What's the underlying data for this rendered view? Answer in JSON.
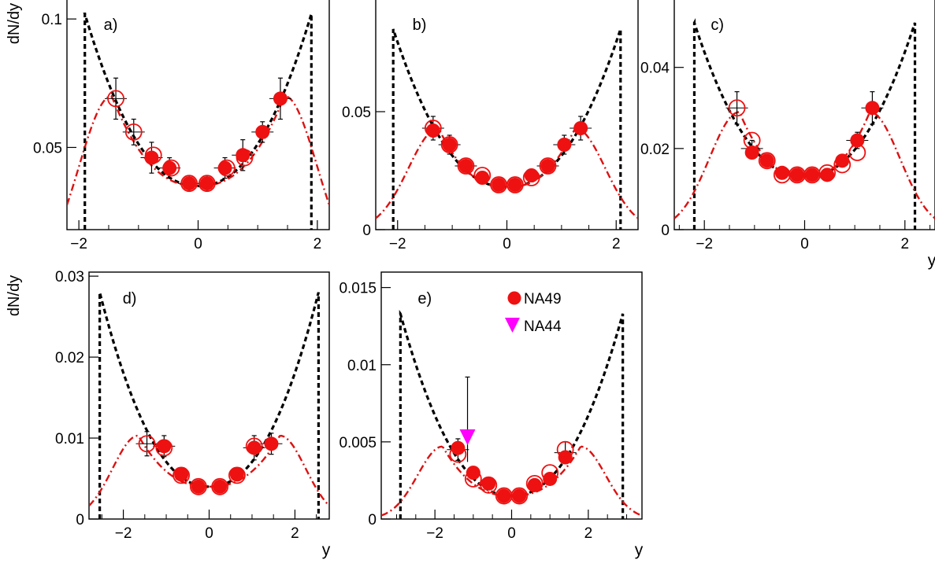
{
  "figure": {
    "ylabel": "dN/dy",
    "xlabel": "y",
    "legend": {
      "entries": [
        {
          "label": "NA49",
          "marker": "filled-circle",
          "color": "#ee1111"
        },
        {
          "label": "NA44",
          "marker": "filled-triangle-down",
          "color": "#ff00ff"
        }
      ]
    },
    "colors": {
      "data": "#ee1111",
      "black_curve": "#000000",
      "red_curve": "#dd1111",
      "na44": "#ff00ff"
    }
  },
  "chart_data": [
    {
      "id": "a",
      "panel_label": "a)",
      "type": "scatter",
      "xlim": [
        -2.2,
        2.2
      ],
      "ylim": [
        0.018,
        0.108
      ],
      "xticks": [
        -2,
        0,
        2
      ],
      "xtick_labels": [
        "−2",
        "0",
        "2"
      ],
      "yticks": [
        0.05,
        0.1
      ],
      "ytick_labels": [
        "0.05",
        "0.1"
      ],
      "ylabel": "dN/dy",
      "xlabel": "",
      "filled": [
        [
          -0.78,
          0.046
        ],
        [
          -0.48,
          0.042
        ],
        [
          -0.15,
          0.036
        ],
        [
          0.15,
          0.036
        ],
        [
          0.45,
          0.042
        ],
        [
          0.75,
          0.047
        ],
        [
          1.08,
          0.056
        ],
        [
          1.38,
          0.069
        ]
      ],
      "open": [
        [
          -1.38,
          0.069
        ],
        [
          -1.08,
          0.056
        ],
        [
          -0.75,
          0.047
        ],
        [
          -0.45,
          0.042
        ],
        [
          -0.15,
          0.036
        ],
        [
          0.15,
          0.036
        ],
        [
          0.48,
          0.042
        ],
        [
          0.78,
          0.046
        ]
      ],
      "errors": [
        [
          -1.38,
          0.069,
          0.008
        ],
        [
          -1.08,
          0.056,
          0.005
        ],
        [
          -0.78,
          0.046,
          0.006
        ],
        [
          -0.48,
          0.042,
          0.004
        ],
        [
          -0.15,
          0.036,
          0.003
        ],
        [
          0.15,
          0.036,
          0.003
        ],
        [
          0.45,
          0.042,
          0.004
        ],
        [
          0.75,
          0.047,
          0.006
        ],
        [
          1.08,
          0.056,
          0.004
        ],
        [
          1.38,
          0.069,
          0.008
        ]
      ],
      "black_curve": {
        "edge_x": 1.9,
        "peak": 0.102,
        "center": 0.035
      },
      "red_curve": {
        "peak_x": 1.45,
        "peak": 0.07,
        "center": 0.035,
        "width": 0.55
      }
    },
    {
      "id": "b",
      "panel_label": "b)",
      "type": "scatter",
      "xlim": [
        -2.4,
        2.4
      ],
      "ylim": [
        0,
        0.098
      ],
      "xticks": [
        -2,
        0,
        2
      ],
      "xtick_labels": [
        "−2",
        "0",
        "2"
      ],
      "yticks": [
        0,
        0.05
      ],
      "ytick_labels": [
        "0",
        "0.05"
      ],
      "ylabel": "",
      "xlabel": "",
      "filled": [
        [
          -1.35,
          0.042
        ],
        [
          -1.05,
          0.036
        ],
        [
          -0.75,
          0.027
        ],
        [
          -0.45,
          0.022
        ],
        [
          -0.15,
          0.019
        ],
        [
          0.15,
          0.019
        ],
        [
          0.45,
          0.023
        ],
        [
          0.75,
          0.027
        ],
        [
          1.05,
          0.036
        ],
        [
          1.35,
          0.043
        ]
      ],
      "open": [
        [
          -1.35,
          0.043
        ],
        [
          -1.05,
          0.036
        ],
        [
          -0.75,
          0.027
        ],
        [
          -0.45,
          0.023
        ],
        [
          -0.15,
          0.019
        ],
        [
          0.15,
          0.019
        ],
        [
          0.45,
          0.022
        ],
        [
          0.75,
          0.027
        ]
      ],
      "errors": [
        [
          -1.35,
          0.043,
          0.005
        ],
        [
          -1.05,
          0.036,
          0.004
        ],
        [
          -0.75,
          0.027,
          0.002
        ],
        [
          0.75,
          0.027,
          0.002
        ],
        [
          1.05,
          0.036,
          0.004
        ],
        [
          1.35,
          0.043,
          0.005
        ]
      ],
      "black_curve": {
        "edge_x": 2.08,
        "peak": 0.085,
        "center": 0.018
      },
      "red_curve": {
        "peak_x": 1.25,
        "peak": 0.043,
        "center": 0.018,
        "width": 0.55
      }
    },
    {
      "id": "c",
      "panel_label": "c)",
      "type": "scatter",
      "xlim": [
        -2.6,
        2.6
      ],
      "ylim": [
        0,
        0.057
      ],
      "xticks": [
        -2,
        0,
        2
      ],
      "xtick_labels": [
        "−2",
        "0",
        "2"
      ],
      "yticks": [
        0,
        0.02,
        0.04
      ],
      "ytick_labels": [
        "0",
        "0.02",
        "0.04"
      ],
      "ylabel": "",
      "xlabel": "y",
      "filled": [
        [
          -1.05,
          0.019
        ],
        [
          -0.75,
          0.017
        ],
        [
          -0.45,
          0.014
        ],
        [
          -0.15,
          0.0135
        ],
        [
          0.15,
          0.0135
        ],
        [
          0.45,
          0.0135
        ],
        [
          0.75,
          0.017
        ],
        [
          1.05,
          0.022
        ],
        [
          1.35,
          0.03
        ]
      ],
      "open": [
        [
          -1.35,
          0.03
        ],
        [
          -1.05,
          0.022
        ],
        [
          -0.75,
          0.017
        ],
        [
          -0.45,
          0.0135
        ],
        [
          -0.15,
          0.0135
        ],
        [
          0.15,
          0.0135
        ],
        [
          0.45,
          0.014
        ],
        [
          0.75,
          0.016
        ],
        [
          1.05,
          0.019
        ]
      ],
      "errors": [
        [
          -1.35,
          0.03,
          0.004
        ],
        [
          -1.05,
          0.02,
          0.002
        ],
        [
          1.05,
          0.022,
          0.002
        ],
        [
          1.35,
          0.03,
          0.004
        ]
      ],
      "black_curve": {
        "edge_x": 2.2,
        "peak": 0.051,
        "center": 0.013
      },
      "red_curve": {
        "peak_x": 1.3,
        "peak": 0.029,
        "center": 0.013,
        "width": 0.6
      }
    },
    {
      "id": "d",
      "panel_label": "d)",
      "type": "scatter",
      "xlim": [
        -2.8,
        2.8
      ],
      "ylim": [
        0,
        0.0305
      ],
      "xticks": [
        -2,
        0,
        2
      ],
      "xtick_labels": [
        "−2",
        "0",
        "2"
      ],
      "yticks": [
        0,
        0.01,
        0.02,
        0.03
      ],
      "ytick_labels": [
        "0",
        "0.01",
        "0.02",
        "0.03"
      ],
      "ylabel": "dN/dy",
      "xlabel": "y",
      "filled": [
        [
          -1.05,
          0.009
        ],
        [
          -0.65,
          0.0055
        ],
        [
          -0.25,
          0.004
        ],
        [
          0.25,
          0.004
        ],
        [
          0.65,
          0.0055
        ],
        [
          1.05,
          0.0088
        ],
        [
          1.45,
          0.0093
        ]
      ],
      "open": [
        [
          -1.45,
          0.0093
        ],
        [
          -1.05,
          0.0088
        ],
        [
          -0.65,
          0.0054
        ],
        [
          -0.25,
          0.004
        ],
        [
          0.25,
          0.004
        ],
        [
          0.65,
          0.0054
        ],
        [
          1.05,
          0.009
        ]
      ],
      "errors": [
        [
          -1.45,
          0.0093,
          0.0015
        ],
        [
          -1.05,
          0.009,
          0.0013
        ],
        [
          1.05,
          0.0088,
          0.0015
        ],
        [
          1.45,
          0.0093,
          0.0013
        ]
      ],
      "black_curve": {
        "edge_x": 2.55,
        "peak": 0.028,
        "center": 0.004
      },
      "red_curve": {
        "peak_x": 1.65,
        "peak": 0.0103,
        "center": 0.004,
        "width": 0.6
      }
    },
    {
      "id": "e",
      "panel_label": "e)",
      "type": "scatter",
      "xlim": [
        -3.4,
        3.4
      ],
      "ylim": [
        0,
        0.016
      ],
      "xticks": [
        -2,
        0,
        2
      ],
      "xtick_labels": [
        "−2",
        "0",
        "2"
      ],
      "yticks": [
        0,
        0.005,
        0.01,
        0.015
      ],
      "ytick_labels": [
        "0",
        "0.005",
        "0.01",
        "0.015"
      ],
      "ylabel": "",
      "xlabel": "y",
      "filled": [
        [
          -1.4,
          0.0046
        ],
        [
          -1.0,
          0.003
        ],
        [
          -0.6,
          0.0023
        ],
        [
          -0.2,
          0.0015
        ],
        [
          0.2,
          0.0015
        ],
        [
          0.6,
          0.0022
        ],
        [
          1.0,
          0.0026
        ],
        [
          1.4,
          0.004
        ]
      ],
      "open": [
        [
          -1.4,
          0.0042
        ],
        [
          -1.0,
          0.0026
        ],
        [
          -0.6,
          0.0022
        ],
        [
          -0.2,
          0.0015
        ],
        [
          0.2,
          0.0015
        ],
        [
          0.6,
          0.0023
        ],
        [
          1.0,
          0.003
        ],
        [
          1.4,
          0.0045
        ]
      ],
      "errors": [
        [
          -1.4,
          0.0045,
          0.0007
        ],
        [
          1.4,
          0.0043,
          0.0007
        ]
      ],
      "na44": {
        "x": -1.15,
        "y": 0.0053,
        "err_up": 0.0039,
        "err_down": 0.0016
      },
      "black_curve": {
        "edge_x": 2.9,
        "peak": 0.0133,
        "center": 0.0015
      },
      "red_curve": {
        "peak_x": 1.8,
        "peak": 0.0047,
        "center": 0.0015,
        "width": 0.65
      }
    }
  ]
}
